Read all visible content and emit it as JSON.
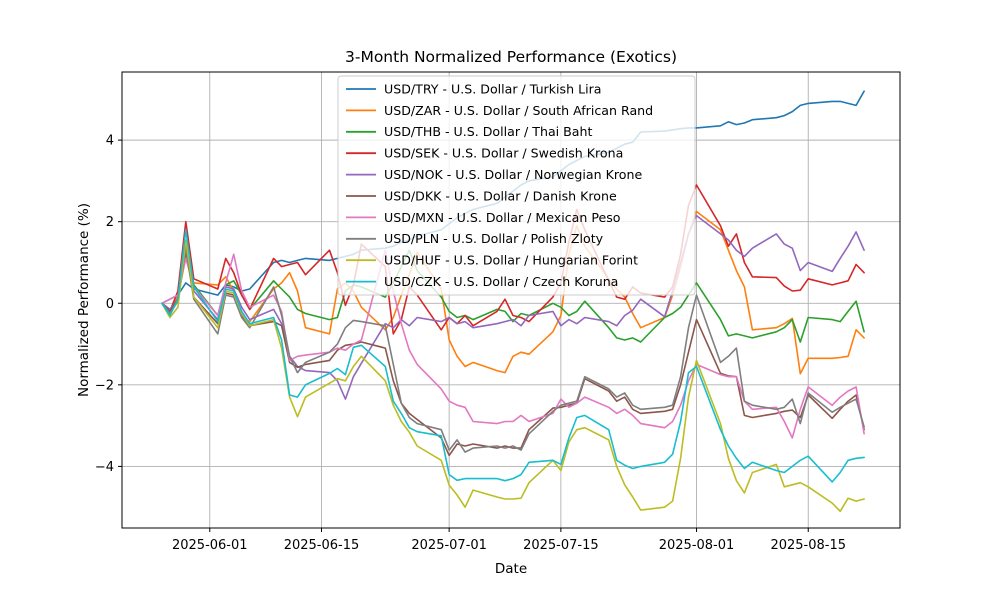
{
  "figure": {
    "title": "3-Month Normalized Performance (Exotics)",
    "xlabel": "Date",
    "ylabel": "Normalized Performance (%)"
  },
  "chart_data": {
    "type": "line",
    "title": "3-Month Normalized Performance (Exotics)",
    "xlabel": "Date",
    "ylabel": "Normalized Performance (%)",
    "grid": true,
    "legend_position": "upper center-left inside plot",
    "legend_bg": "rgba(255,255,255,0.8)",
    "grid_color": "#b0b0b0",
    "spine_color": "#000000",
    "xlim": [
      "2025-05-21T00:00:00Z",
      "2025-08-26T12:00:00Z"
    ],
    "ylim": [
      -5.51,
      5.67
    ],
    "y_ticks": [
      4,
      2,
      0,
      -2,
      -4
    ],
    "x_ticks": [
      "2025-06-01",
      "2025-06-15",
      "2025-07-01",
      "2025-07-15",
      "2025-08-01",
      "2025-08-15"
    ],
    "dates": [
      "2025-05-26",
      "2025-05-27",
      "2025-05-28",
      "2025-05-29",
      "2025-05-30",
      "2025-06-02",
      "2025-06-03",
      "2025-06-04",
      "2025-06-05",
      "2025-06-06",
      "2025-06-09",
      "2025-06-10",
      "2025-06-11",
      "2025-06-12",
      "2025-06-13",
      "2025-06-16",
      "2025-06-17",
      "2025-06-18",
      "2025-06-19",
      "2025-06-20",
      "2025-06-23",
      "2025-06-24",
      "2025-06-25",
      "2025-06-26",
      "2025-06-27",
      "2025-06-30",
      "2025-07-01",
      "2025-07-02",
      "2025-07-03",
      "2025-07-04",
      "2025-07-07",
      "2025-07-08",
      "2025-07-09",
      "2025-07-10",
      "2025-07-11",
      "2025-07-14",
      "2025-07-15",
      "2025-07-16",
      "2025-07-17",
      "2025-07-18",
      "2025-07-21",
      "2025-07-22",
      "2025-07-23",
      "2025-07-24",
      "2025-07-25",
      "2025-07-28",
      "2025-07-29",
      "2025-07-30",
      "2025-07-31",
      "2025-08-01",
      "2025-08-04",
      "2025-08-05",
      "2025-08-06",
      "2025-08-07",
      "2025-08-08",
      "2025-08-11",
      "2025-08-12",
      "2025-08-13",
      "2025-08-14",
      "2025-08-15",
      "2025-08-18",
      "2025-08-19",
      "2025-08-20",
      "2025-08-21",
      "2025-08-22"
    ],
    "series": [
      {
        "id": "usd-try",
        "name": "USD/TRY - U.S. Dollar / Turkish Lira",
        "color": "#1f77b4",
        "values": [
          0,
          0.1,
          0.2,
          0.5,
          0.35,
          0.2,
          0.45,
          0.4,
          0.3,
          0.35,
          1.0,
          1.05,
          1.0,
          1.05,
          1.1,
          1.05,
          1.1,
          1.15,
          1.2,
          1.3,
          1.35,
          1.4,
          1.5,
          1.55,
          1.65,
          1.8,
          1.95,
          2.1,
          2.2,
          2.3,
          2.45,
          2.6,
          2.75,
          2.9,
          3.0,
          3.1,
          3.25,
          3.4,
          3.5,
          3.6,
          3.7,
          3.8,
          3.9,
          3.95,
          4.2,
          4.22,
          4.25,
          4.28,
          4.3,
          4.3,
          4.35,
          4.45,
          4.38,
          4.42,
          4.5,
          4.55,
          4.6,
          4.7,
          4.85,
          4.9,
          4.95,
          4.95,
          4.9,
          4.85,
          5.2
        ]
      },
      {
        "id": "usd-zar",
        "name": "USD/ZAR - U.S. Dollar / South African Rand",
        "color": "#ff7f0e",
        "values": [
          0,
          -0.3,
          0.2,
          1.3,
          0.5,
          0.45,
          0.65,
          0.3,
          -0.35,
          -0.45,
          0.35,
          0.5,
          0.75,
          0.3,
          -0.6,
          -0.75,
          0.35,
          0.5,
          0.3,
          -0.1,
          -0.65,
          -0.35,
          0.2,
          0.7,
          1.25,
          0.35,
          -0.9,
          -1.3,
          -1.55,
          -1.45,
          -1.65,
          -1.7,
          -1.3,
          -1.2,
          -1.25,
          -0.7,
          -0.3,
          1.2,
          1.9,
          1.4,
          0.6,
          0.35,
          0.15,
          -0.25,
          -0.6,
          -0.35,
          0.2,
          0.9,
          1.7,
          2.25,
          1.8,
          1.3,
          0.8,
          0.4,
          -0.65,
          -0.6,
          -0.5,
          -0.37,
          -1.73,
          -1.35,
          -1.35,
          -1.33,
          -1.3,
          -0.65,
          -0.85
        ]
      },
      {
        "id": "usd-thb",
        "name": "USD/THB - U.S. Dollar / Thai Baht",
        "color": "#2ca02c",
        "values": [
          0,
          -0.15,
          0.1,
          1.2,
          0.45,
          -0.3,
          0.45,
          0.55,
          0.2,
          -0.15,
          0.55,
          0.35,
          0.15,
          -0.15,
          -0.25,
          -0.4,
          -0.35,
          0.3,
          0.45,
          0.4,
          0.15,
          0.5,
          0.9,
          1.3,
          0.8,
          0.15,
          -0.2,
          -0.35,
          -0.3,
          -0.4,
          -0.15,
          -0.2,
          -0.45,
          -0.25,
          -0.3,
          0.0,
          -0.1,
          -0.3,
          -0.2,
          0.05,
          -0.6,
          -0.85,
          -0.9,
          -0.85,
          -0.95,
          -0.35,
          -0.25,
          -0.1,
          0.2,
          0.5,
          -0.4,
          -0.8,
          -0.75,
          -0.8,
          -0.85,
          -0.7,
          -0.6,
          -0.4,
          -0.95,
          -0.35,
          -0.4,
          -0.45,
          -0.2,
          0.05,
          -0.7
        ]
      },
      {
        "id": "usd-sek",
        "name": "USD/SEK - U.S. Dollar / Swedish Krona",
        "color": "#d62728",
        "values": [
          0,
          -0.2,
          0.3,
          2.0,
          0.6,
          0.35,
          1.1,
          0.75,
          0.2,
          -0.15,
          1.1,
          0.9,
          0.95,
          1.0,
          0.7,
          1.3,
          0.75,
          -0.05,
          0.45,
          1.45,
          0.9,
          -0.75,
          -0.4,
          0.4,
          0.2,
          -0.65,
          -0.35,
          -0.5,
          -0.3,
          -0.55,
          -0.2,
          0.1,
          -0.3,
          -0.35,
          -0.45,
          0.15,
          0.5,
          1.5,
          2.3,
          1.8,
          0.55,
          0.15,
          0.1,
          0.4,
          0.25,
          0.15,
          0.4,
          1.2,
          2.4,
          2.9,
          1.9,
          1.4,
          1.7,
          1.0,
          0.65,
          0.63,
          0.42,
          0.3,
          0.32,
          0.6,
          0.45,
          0.5,
          0.55,
          0.95,
          0.75
        ]
      },
      {
        "id": "usd-nok",
        "name": "USD/NOK - U.S. Dollar / Norwegian Krone",
        "color": "#9467bd",
        "values": [
          0,
          -0.15,
          0.1,
          1.4,
          0.3,
          -0.4,
          0.4,
          0.35,
          -0.1,
          -0.4,
          -0.15,
          -0.5,
          -1.3,
          -1.55,
          -1.65,
          -1.7,
          -1.9,
          -2.35,
          -1.8,
          -1.47,
          -0.5,
          -0.6,
          -0.4,
          -0.55,
          -0.35,
          -0.45,
          -0.35,
          -0.5,
          -0.45,
          -0.6,
          -0.5,
          -0.45,
          -0.4,
          -0.55,
          -0.3,
          -0.2,
          -0.55,
          -0.4,
          -0.5,
          -0.35,
          -0.45,
          -0.55,
          -0.3,
          -0.17,
          0.1,
          -0.33,
          0.3,
          1.0,
          1.7,
          2.15,
          1.7,
          1.55,
          1.3,
          1.15,
          1.35,
          1.7,
          1.45,
          1.35,
          0.8,
          1.0,
          0.78,
          1.1,
          1.4,
          1.75,
          1.3
        ]
      },
      {
        "id": "usd-dkk",
        "name": "USD/DKK - U.S. Dollar / Danish Krone",
        "color": "#8c564b",
        "values": [
          0,
          -0.2,
          0.1,
          1.3,
          0.15,
          -0.5,
          0.25,
          0.2,
          -0.3,
          -0.55,
          -0.45,
          -0.55,
          -1.45,
          -1.57,
          -1.5,
          -1.4,
          -1.15,
          -1.03,
          -1.0,
          -0.95,
          -1.1,
          -1.9,
          -2.45,
          -2.7,
          -2.85,
          -3.3,
          -3.73,
          -3.45,
          -3.5,
          -3.45,
          -3.55,
          -3.5,
          -3.55,
          -3.55,
          -3.1,
          -2.57,
          -2.55,
          -2.5,
          -2.45,
          -1.85,
          -2.15,
          -2.4,
          -2.3,
          -2.6,
          -2.7,
          -2.65,
          -2.6,
          -2.0,
          -1.2,
          -0.4,
          -1.72,
          -1.78,
          -1.8,
          -2.75,
          -2.8,
          -2.7,
          -2.65,
          -2.62,
          -2.8,
          -2.25,
          -2.82,
          -2.6,
          -2.4,
          -2.25,
          -3.1
        ]
      },
      {
        "id": "usd-mxn",
        "name": "USD/MXN - U.S. Dollar / Mexican Peso",
        "color": "#e377c2",
        "values": [
          0,
          0.1,
          0.2,
          1.1,
          0.4,
          -0.3,
          0.5,
          1.2,
          0.3,
          -0.1,
          0.2,
          -0.2,
          -1.4,
          -1.3,
          -1.27,
          -1.2,
          -1.1,
          -1.15,
          -1.0,
          -0.9,
          1.3,
          0.3,
          -0.5,
          -1.15,
          -1.5,
          -2.1,
          -2.4,
          -2.5,
          -2.55,
          -2.9,
          -2.95,
          -2.9,
          -2.9,
          -2.75,
          -2.9,
          -2.7,
          -2.35,
          -2.55,
          -2.45,
          -2.3,
          -2.55,
          -2.7,
          -2.6,
          -2.75,
          -2.95,
          -3.05,
          -2.9,
          -2.5,
          -1.9,
          -1.5,
          -1.75,
          -1.8,
          -1.8,
          -2.4,
          -2.6,
          -2.55,
          -2.9,
          -3.3,
          -2.6,
          -2.05,
          -2.5,
          -2.3,
          -2.15,
          -2.05,
          -3.2
        ]
      },
      {
        "id": "usd-pln",
        "name": "USD/PLN - U.S. Dollar / Polish Zloty",
        "color": "#7f7f7f",
        "values": [
          0,
          -0.25,
          0.05,
          1.35,
          0.1,
          -0.75,
          0.2,
          0.15,
          -0.35,
          -0.6,
          0.4,
          -0.3,
          -1.3,
          -1.7,
          -1.45,
          -1.2,
          -1.0,
          -0.6,
          -0.42,
          -0.45,
          -0.55,
          -1.5,
          -2.45,
          -2.8,
          -2.95,
          -3.1,
          -3.6,
          -3.35,
          -3.65,
          -3.55,
          -3.5,
          -3.55,
          -3.5,
          -3.6,
          -3.2,
          -2.65,
          -2.5,
          -2.45,
          -2.4,
          -1.8,
          -2.1,
          -2.3,
          -2.2,
          -2.5,
          -2.6,
          -2.55,
          -2.5,
          -1.8,
          -0.6,
          0.2,
          -1.45,
          -1.3,
          -1.1,
          -2.4,
          -2.5,
          -2.6,
          -2.55,
          -2.35,
          -2.95,
          -2.2,
          -2.67,
          -2.55,
          -2.45,
          -2.35,
          -3.03
        ]
      },
      {
        "id": "usd-huf",
        "name": "USD/HUF - U.S. Dollar / Hungarian Forint",
        "color": "#bcbd22",
        "values": [
          0,
          -0.35,
          -0.1,
          1.55,
          0.15,
          -0.6,
          0.3,
          0.25,
          -0.25,
          -0.55,
          -0.4,
          -1.1,
          -2.3,
          -2.78,
          -2.3,
          -1.96,
          -1.85,
          -1.9,
          -1.55,
          -1.3,
          -1.9,
          -2.5,
          -2.9,
          -3.16,
          -3.5,
          -3.85,
          -4.46,
          -4.7,
          -5.0,
          -4.58,
          -4.75,
          -4.8,
          -4.8,
          -4.78,
          -4.4,
          -3.85,
          -4.1,
          -3.4,
          -3.1,
          -3.05,
          -3.35,
          -4.0,
          -4.45,
          -4.75,
          -5.07,
          -5.0,
          -4.85,
          -3.8,
          -2.3,
          -1.4,
          -2.95,
          -3.8,
          -4.35,
          -4.65,
          -4.15,
          -3.95,
          -4.5,
          -4.45,
          -4.4,
          -4.5,
          -4.9,
          -5.1,
          -4.78,
          -4.85,
          -4.8
        ]
      },
      {
        "id": "usd-czk",
        "name": "USD/CZK - U.S. Dollar / Czech Koruna",
        "color": "#17becf",
        "values": [
          0,
          -0.3,
          0.1,
          1.8,
          0.4,
          -0.45,
          0.35,
          0.3,
          -0.2,
          -0.5,
          -0.35,
          -0.9,
          -2.25,
          -2.3,
          -2.0,
          -1.72,
          -1.6,
          -1.75,
          -1.08,
          -1.03,
          -1.55,
          -2.4,
          -2.7,
          -3.05,
          -3.15,
          -3.25,
          -4.2,
          -4.34,
          -4.3,
          -4.3,
          -4.3,
          -4.35,
          -4.3,
          -4.2,
          -3.9,
          -3.85,
          -3.95,
          -3.3,
          -2.8,
          -2.75,
          -3.1,
          -3.85,
          -3.97,
          -4.05,
          -4.0,
          -3.9,
          -3.7,
          -2.9,
          -1.7,
          -1.55,
          -3.1,
          -3.5,
          -3.8,
          -4.05,
          -3.9,
          -4.1,
          -4.15,
          -4.0,
          -3.85,
          -3.75,
          -4.38,
          -4.15,
          -3.85,
          -3.8,
          -3.78
        ]
      }
    ]
  }
}
